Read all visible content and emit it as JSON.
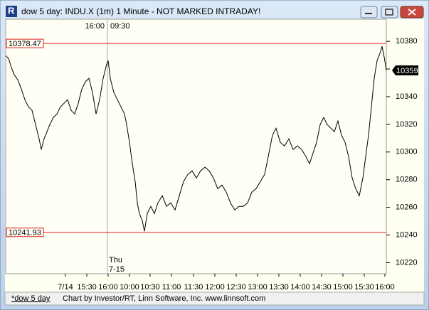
{
  "window_title": "dow 5 day: INDU.X (1m) 1 Minute - NOT MARKED INTRADAY!",
  "status_bar": {
    "tab": "*dow 5 day",
    "credit": "Chart by Investor/RT, Linn Software, Inc. www.linnsoft.com"
  },
  "chart_data": {
    "type": "line",
    "x": [
      0,
      4,
      8,
      12,
      17,
      22,
      27,
      32,
      37,
      42,
      47,
      50,
      54,
      58,
      62,
      67,
      72,
      77,
      82,
      87,
      92,
      97,
      102,
      107,
      112,
      117,
      122,
      127,
      132,
      137,
      142,
      144,
      147,
      152,
      157,
      162,
      167,
      170,
      174,
      178,
      182,
      185,
      188,
      192,
      195,
      199,
      204,
      209,
      214,
      220,
      226,
      232,
      238,
      244,
      250,
      256,
      262,
      268,
      274,
      280,
      286,
      292,
      298,
      304,
      310,
      316,
      322,
      328,
      334,
      340,
      346,
      352,
      358,
      364,
      370,
      375,
      380,
      386,
      392,
      398,
      404,
      410,
      416,
      422,
      427,
      432,
      437,
      442,
      447,
      452,
      457,
      462,
      467,
      472,
      477,
      482,
      487,
      492,
      497,
      502,
      506,
      510,
      514,
      518,
      522,
      526,
      529,
      532,
      535
    ],
    "series": [
      {
        "name": "INDU.X",
        "color": "#000000",
        "values": [
          10369.7,
          10367.7,
          10361,
          10355.8,
          10352.2,
          10345.5,
          10337.8,
          10332.7,
          10330.1,
          10319.8,
          10309.5,
          10301.8,
          10309.5,
          10314.7,
          10319.8,
          10325,
          10327.5,
          10332.7,
          10335.2,
          10337.8,
          10330.1,
          10327.5,
          10335.2,
          10345.5,
          10350.7,
          10353.3,
          10343,
          10327.5,
          10337.8,
          10353.3,
          10363.5,
          10366.1,
          10353.3,
          10343,
          10337.8,
          10332.7,
          10327.5,
          10319.8,
          10307,
          10291.5,
          10278.7,
          10263.2,
          10255.5,
          10250.4,
          10242.7,
          10255.5,
          10260.7,
          10255.5,
          10263.2,
          10268.4,
          10260.7,
          10263.2,
          10258.1,
          10268.4,
          10278.7,
          10283.8,
          10286.4,
          10281.2,
          10286.4,
          10289,
          10286.4,
          10281.2,
          10273.5,
          10276.1,
          10271,
          10263.2,
          10258.1,
          10260.7,
          10260.7,
          10263.2,
          10271,
          10273.5,
          10278.7,
          10283.8,
          10299.2,
          10312.1,
          10317.2,
          10307,
          10304.4,
          10309.5,
          10301.8,
          10304.4,
          10301.8,
          10296.7,
          10291.5,
          10299.2,
          10307,
          10319.8,
          10325,
          10319.8,
          10317.2,
          10314.7,
          10322.4,
          10312.1,
          10307,
          10296.7,
          10281.2,
          10273.5,
          10268.4,
          10281.2,
          10296.7,
          10312.1,
          10332.7,
          10353.3,
          10366.1,
          10371.3,
          10376.4,
          10368.7,
          10359
        ]
      }
    ],
    "xlim": [
      0,
      535
    ],
    "xticks": [
      {
        "value": 84,
        "label": "7/14"
      },
      {
        "value": 114,
        "label": "15:30"
      },
      {
        "value": 144,
        "label": "16:00"
      },
      {
        "value": 174,
        "label": "10:00"
      },
      {
        "value": 203,
        "label": "10:30"
      },
      {
        "value": 233,
        "label": "11:00"
      },
      {
        "value": 264,
        "label": "11:30"
      },
      {
        "value": 294,
        "label": "12:00"
      },
      {
        "value": 324,
        "label": "12:30"
      },
      {
        "value": 354,
        "label": "13:00"
      },
      {
        "value": 384,
        "label": "13:30"
      },
      {
        "value": 414,
        "label": "14:00"
      },
      {
        "value": 444,
        "label": "14:30"
      },
      {
        "value": 474,
        "label": "15:00"
      },
      {
        "value": 504,
        "label": "15:30"
      },
      {
        "value": 533,
        "label": "16:00"
      }
    ],
    "ylim": [
      10212,
      10396
    ],
    "yticks": [
      10220,
      10240,
      10260,
      10280,
      10300,
      10320,
      10340,
      10360,
      10380
    ],
    "hlines": [
      10378.47,
      10241.93
    ],
    "hline_color": "#e02020",
    "last_value": 10359,
    "session_break": {
      "x": 143,
      "labels": [
        "16:00",
        "09:30"
      ],
      "day": [
        "Thu",
        "7-15"
      ]
    }
  }
}
